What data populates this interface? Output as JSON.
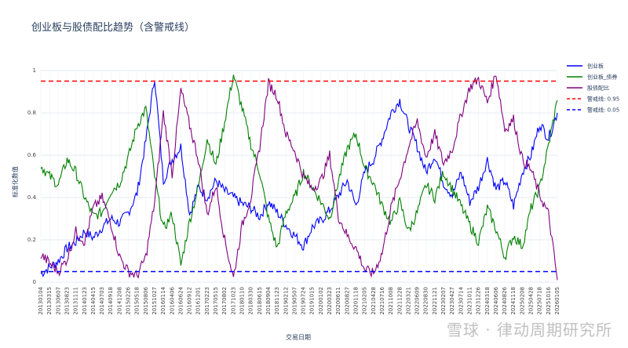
{
  "chart_data": {
    "type": "line",
    "title": "创业板与股债配比趋势（含警戒线）",
    "xlabel": "交易日期",
    "ylabel": "标准化数值",
    "ylim": [
      0,
      1
    ],
    "yticks": [
      0,
      0.2,
      0.4,
      0.6,
      0.8,
      1
    ],
    "ytick_labels": [
      "0",
      "0.2",
      "0.4",
      "0.6",
      "0.8",
      "1"
    ],
    "grid": true,
    "legend_position": "top-right",
    "x_tick_labels": [
      "20130104",
      "20130315",
      "20130607",
      "20130823",
      "20131111",
      "20140123",
      "20140415",
      "20140703",
      "20140918",
      "20141208",
      "20150226",
      "20150518",
      "20150806",
      "20151027",
      "20160114",
      "20160406",
      "20160624",
      "20160912",
      "20161201",
      "20170223",
      "20170515",
      "20170802",
      "20171023",
      "20180110",
      "20180330",
      "20180615",
      "20180904",
      "20181123",
      "20190212",
      "20190507",
      "20190724",
      "20191015",
      "20200102",
      "20200323",
      "20200611",
      "20200827",
      "20201118",
      "20210205",
      "20210428",
      "20210716",
      "20211008",
      "20211228",
      "20220321",
      "20220609",
      "20220830",
      "20221121",
      "20230207",
      "20230427",
      "20230714",
      "20231011",
      "20231226",
      "20240318",
      "20240606",
      "20240826",
      "20241118",
      "20250208",
      "20250428",
      "20250718",
      "20251016",
      "20260105"
    ],
    "series": [
      {
        "name": "创业板",
        "color": "#0000ff",
        "style": "solid",
        "values": [
          0.04,
          0.07,
          0.1,
          0.16,
          0.19,
          0.24,
          0.21,
          0.26,
          0.3,
          0.28,
          0.33,
          0.42,
          0.67,
          0.97,
          0.48,
          0.58,
          0.64,
          0.32,
          0.45,
          0.4,
          0.48,
          0.43,
          0.4,
          0.37,
          0.35,
          0.31,
          0.38,
          0.33,
          0.27,
          0.22,
          0.17,
          0.26,
          0.29,
          0.34,
          0.41,
          0.48,
          0.36,
          0.52,
          0.58,
          0.68,
          0.8,
          0.86,
          0.74,
          0.64,
          0.52,
          0.6,
          0.47,
          0.41,
          0.52,
          0.38,
          0.45,
          0.58,
          0.44,
          0.48,
          0.36,
          0.52,
          0.6,
          0.75,
          0.68,
          0.8
        ]
      },
      {
        "name": "创业板_债券",
        "color": "#008000",
        "style": "solid",
        "values": [
          0.55,
          0.5,
          0.46,
          0.58,
          0.52,
          0.4,
          0.31,
          0.33,
          0.43,
          0.47,
          0.59,
          0.74,
          0.82,
          0.5,
          0.25,
          0.32,
          0.08,
          0.29,
          0.45,
          0.68,
          0.55,
          0.76,
          0.98,
          0.82,
          0.65,
          0.52,
          0.3,
          0.16,
          0.33,
          0.4,
          0.52,
          0.45,
          0.38,
          0.3,
          0.48,
          0.63,
          0.7,
          0.54,
          0.47,
          0.36,
          0.28,
          0.38,
          0.24,
          0.33,
          0.46,
          0.4,
          0.52,
          0.44,
          0.36,
          0.27,
          0.19,
          0.35,
          0.25,
          0.12,
          0.22,
          0.17,
          0.35,
          0.45,
          0.65,
          0.86
        ]
      },
      {
        "name": "股债配比",
        "color": "#800080",
        "style": "solid",
        "values": [
          0.13,
          0.09,
          0.05,
          0.11,
          0.24,
          0.19,
          0.35,
          0.4,
          0.28,
          0.12,
          0.05,
          0.03,
          0.12,
          0.38,
          0.8,
          0.51,
          0.91,
          0.74,
          0.58,
          0.32,
          0.46,
          0.2,
          0.02,
          0.27,
          0.4,
          0.64,
          0.94,
          0.88,
          0.7,
          0.62,
          0.5,
          0.44,
          0.48,
          0.6,
          0.31,
          0.22,
          0.16,
          0.06,
          0.04,
          0.14,
          0.35,
          0.49,
          0.64,
          0.76,
          0.59,
          0.7,
          0.56,
          0.63,
          0.79,
          0.92,
          0.96,
          0.85,
          0.99,
          0.72,
          0.77,
          0.58,
          0.53,
          0.41,
          0.32,
          0.01
        ]
      },
      {
        "name": "警戒线: 0.95",
        "color": "#ff0000",
        "style": "dashed",
        "value": 0.95
      },
      {
        "name": "警戒线: 0.05",
        "color": "#0000ff",
        "style": "dashed",
        "value": 0.05
      }
    ]
  },
  "watermark": "雪球 · 律动周期研究所"
}
